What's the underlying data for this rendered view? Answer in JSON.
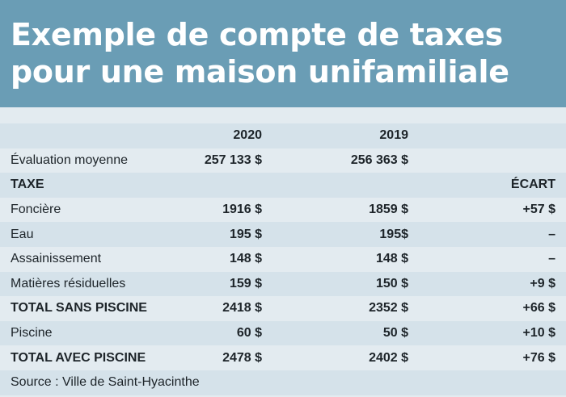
{
  "title_line1": "Exemple de compte de taxes",
  "title_line2": "pour une maison unifamiliale",
  "years": {
    "y2020": "2020",
    "y2019": "2019"
  },
  "evaluation": {
    "label": "Évaluation moyenne",
    "v2020": "257 133 $",
    "v2019": "256 363 $"
  },
  "tax_header": {
    "label": "TAXE",
    "ecart": "ÉCART"
  },
  "rows": [
    {
      "label": "Foncière",
      "v2020": "1916 $",
      "v2019": "1859 $",
      "ecart": "+57 $",
      "bold": false
    },
    {
      "label": "Eau",
      "v2020": "195 $",
      "v2019": "195$",
      "ecart": "–",
      "bold": false
    },
    {
      "label": "Assainissement",
      "v2020": "148 $",
      "v2019": "148 $",
      "ecart": "–",
      "bold": false
    },
    {
      "label": "Matières résiduelles",
      "v2020": "159 $",
      "v2019": "150 $",
      "ecart": "+9 $",
      "bold": false
    },
    {
      "label": "TOTAL SANS PISCINE",
      "v2020": "2418 $",
      "v2019": "2352 $",
      "ecart": "+66 $",
      "bold": true
    },
    {
      "label": "Piscine",
      "v2020": "60 $",
      "v2019": "50 $",
      "ecart": "+10 $",
      "bold": false
    },
    {
      "label": "TOTAL AVEC PISCINE",
      "v2020": "2478 $",
      "v2019": "2402 $",
      "ecart": "+76 $",
      "bold": true
    }
  ],
  "source": "Source : Ville de Saint-Hyacinthe",
  "colors": {
    "banner": "#6a9db5",
    "row_alt": "#d5e2ea",
    "row_light": "#e3ebf0"
  }
}
